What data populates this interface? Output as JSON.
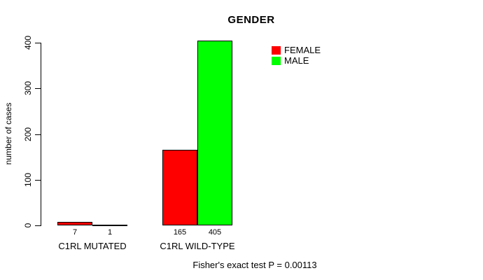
{
  "chart_data": {
    "type": "bar",
    "title": "GENDER",
    "ylabel": "number of cases",
    "xlabel": "",
    "ylim": [
      0,
      400
    ],
    "yticks": [
      0,
      100,
      200,
      300,
      400
    ],
    "categories": [
      "C1RL MUTATED",
      "C1RL WILD-TYPE"
    ],
    "series": [
      {
        "name": "FEMALE",
        "color": "#ff0000",
        "values": [
          7,
          165
        ]
      },
      {
        "name": "MALE",
        "color": "#00ff00",
        "values": [
          1,
          405
        ]
      }
    ],
    "grouping": "grouped",
    "grid": false,
    "legend_position": "top-right",
    "bar_border_color": "#000000",
    "annotation": "Fisher's exact test P = 0.00113"
  }
}
